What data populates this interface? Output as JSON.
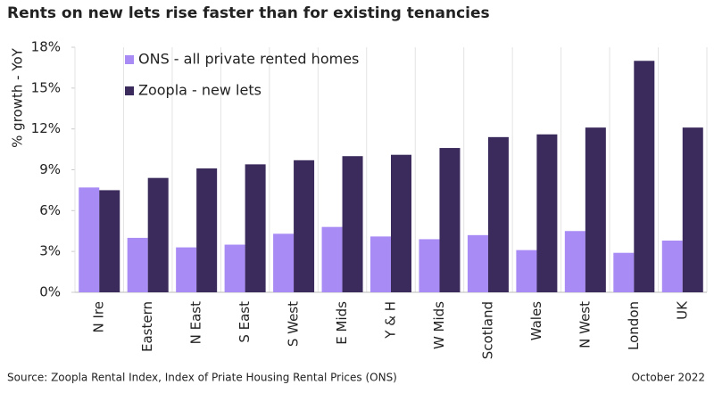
{
  "chart_data": {
    "type": "bar",
    "title": "Rents on new lets rise faster than for existing tenancies",
    "y_label": "% growth - YoY",
    "categories": [
      "N Ire",
      "Eastern",
      "N East",
      "S East",
      "S West",
      "E Mids",
      "Y & H",
      "W Mids",
      "Scotland",
      "Wales",
      "N West",
      "London",
      "UK"
    ],
    "series": [
      {
        "name": "ONS - all private rented homes",
        "color": "#a98bf5",
        "values": [
          7.7,
          4.0,
          3.3,
          3.5,
          4.3,
          4.8,
          4.1,
          3.9,
          4.2,
          3.1,
          4.5,
          2.9,
          3.8
        ]
      },
      {
        "name": "Zoopla - new lets",
        "color": "#3b2a5c",
        "values": [
          7.5,
          8.4,
          9.1,
          9.4,
          9.7,
          10.0,
          10.1,
          10.6,
          11.4,
          11.6,
          12.1,
          17.0,
          12.1
        ]
      }
    ],
    "ylim": [
      0,
      18
    ],
    "yticks": [
      {
        "value": 0,
        "label": "0%"
      },
      {
        "value": 3,
        "label": "3%"
      },
      {
        "value": 6,
        "label": "6%"
      },
      {
        "value": 9,
        "label": "9%"
      },
      {
        "value": 12,
        "label": "12%"
      },
      {
        "value": 15,
        "label": "15%"
      },
      {
        "value": 18,
        "label": "18%"
      }
    ],
    "legend": "top-left",
    "source": "Source: Zoopla Rental Index, Index of Priate Housing Rental Prices (ONS)",
    "date": "October 2022"
  }
}
